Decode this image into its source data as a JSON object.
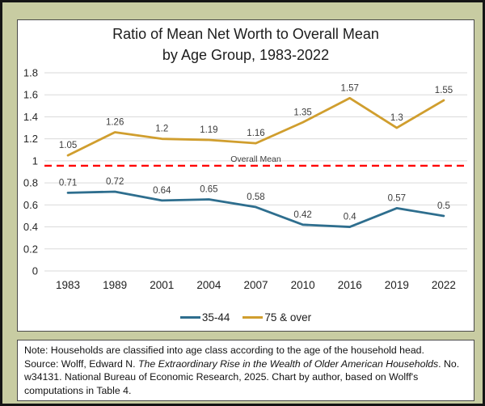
{
  "frame": {
    "background_color": "#c8cca2",
    "border_color": "#151515"
  },
  "chart_data": {
    "type": "line",
    "title": "Ratio of Mean Net Worth to Overall Mean",
    "subtitle": "by Age Group, 1983-2022",
    "categories": [
      "1983",
      "1989",
      "2001",
      "2004",
      "2007",
      "2010",
      "2016",
      "2019",
      "2022"
    ],
    "series": [
      {
        "name": "35-44",
        "color": "#2e6e8e",
        "values": [
          0.71,
          0.72,
          0.64,
          0.65,
          0.58,
          0.42,
          0.4,
          0.57,
          0.5
        ]
      },
      {
        "name": "75 & over",
        "color": "#d09e2e",
        "values": [
          1.05,
          1.26,
          1.2,
          1.19,
          1.16,
          1.35,
          1.57,
          1.3,
          1.55
        ]
      }
    ],
    "reference_line": {
      "label": "Overall Mean",
      "value": 1,
      "color": "#ff0000",
      "style": "dashed"
    },
    "y_ticks": [
      0,
      0.2,
      0.4,
      0.6,
      0.8,
      1,
      1.2,
      1.4,
      1.6,
      1.8
    ],
    "ylim": [
      0,
      1.8
    ],
    "grid": "horizontal",
    "gridline_color": "#dadada",
    "legend_position": "bottom",
    "data_labels": true
  },
  "note": {
    "line1": "Note: Households are classified into age class according to the age of the household head.",
    "source_prefix": "Source: Wolff, Edward N. ",
    "source_title_italic": "The Extraordinary Rise in the Wealth of Older American Households",
    "source_suffix": ". No. w34131. National Bureau of Economic Research, 2025. Chart by author, based on Wolff's computations in Table 4."
  }
}
